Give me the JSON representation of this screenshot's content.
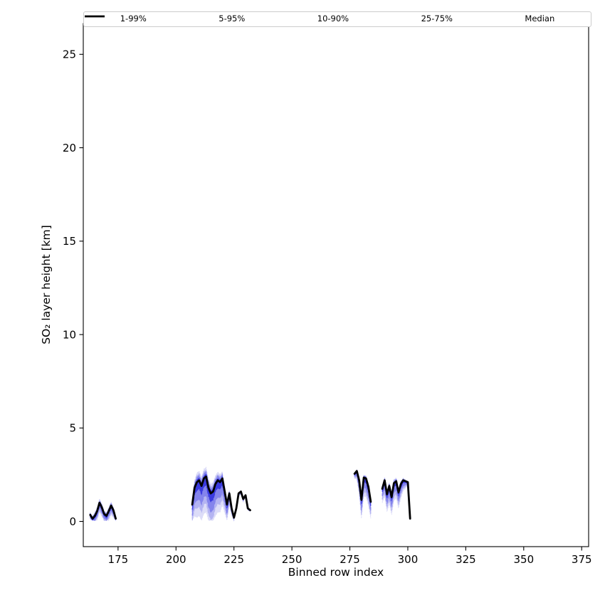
{
  "figure": {
    "background": "#ffffff"
  },
  "chart_data": {
    "type": "line",
    "title": "",
    "xlabel": "Binned row index",
    "ylabel": "SO₂ layer height [km]",
    "xlim": [
      160,
      378
    ],
    "ylim": [
      -1.35,
      26.65
    ],
    "xticks": [
      175,
      200,
      225,
      250,
      275,
      300,
      325,
      350,
      375
    ],
    "yticks": [
      0,
      5,
      10,
      15,
      20,
      25
    ],
    "grid": false,
    "legend_position": "top",
    "legend": [
      {
        "label": "1-99%",
        "color": "#dcdcf8",
        "dash": "1,2.8",
        "width": 1.2
      },
      {
        "label": "5-95%",
        "color": "#b4b4f2",
        "dash": "4,2.5",
        "width": 1.2
      },
      {
        "label": "10-90%",
        "color": "#8484ec",
        "dash": "5,3",
        "width": 1.2
      },
      {
        "label": "25-75%",
        "color": "#3a3ae0",
        "dash": "6,2.5,1.5,2.5",
        "width": 1.4
      },
      {
        "label": "Median",
        "color": "#000000",
        "dash": "",
        "width": 2.8
      }
    ],
    "bands": [
      {
        "label": "1-99%",
        "fill": "#dcdcf8",
        "dash": "1,2.8"
      },
      {
        "label": "5-95%",
        "fill": "#b4b4f2",
        "dash": "4,2.5"
      },
      {
        "label": "10-90%",
        "fill": "#8484ec",
        "dash": "5,3"
      },
      {
        "label": "25-75%",
        "fill": "#3a3ae0",
        "dash": "6,2.5,1.5,2.5"
      }
    ],
    "median_style": {
      "color": "#000000",
      "width": 2.8
    },
    "segments": [
      {
        "x": [
          163,
          164,
          165,
          166,
          167,
          168,
          169,
          170,
          171,
          172,
          173,
          174
        ],
        "median": [
          0.35,
          0.15,
          0.3,
          0.55,
          1.0,
          0.75,
          0.4,
          0.3,
          0.55,
          0.85,
          0.6,
          0.15
        ],
        "spread": [
          0.5,
          0.7,
          1,
          1,
          1,
          1,
          0.9,
          0.9,
          1,
          1,
          0.8,
          0.5
        ],
        "offsets": [
          [
            0.5,
            0.2
          ],
          [
            0.38,
            0.15
          ],
          [
            0.27,
            0.1
          ],
          [
            0.13,
            0.05
          ]
        ]
      },
      {
        "x": [
          207,
          208,
          209,
          210,
          211,
          212,
          213,
          214,
          215,
          216,
          217,
          218,
          219,
          220,
          221,
          222,
          223,
          224,
          225,
          226,
          227,
          228,
          229,
          230,
          231,
          232
        ],
        "median": [
          0.9,
          1.8,
          2.1,
          2.2,
          1.9,
          2.3,
          2.4,
          1.8,
          1.5,
          1.6,
          2.0,
          2.2,
          2.1,
          2.3,
          1.6,
          0.9,
          1.5,
          0.7,
          0.2,
          0.7,
          1.5,
          1.6,
          1.2,
          1.4,
          0.7,
          0.6
        ],
        "spread": [
          0.6,
          0.8,
          1,
          1,
          1,
          1,
          1,
          1,
          1,
          1,
          0.9,
          0.9,
          0.85,
          0.75,
          0.6,
          0.5,
          0.35,
          0.2,
          0.1,
          0.08,
          0.08,
          0.08,
          0.08,
          0.06,
          0.05,
          0.05
        ],
        "offsets": [
          [
            1.9,
            0.5
          ],
          [
            1.4,
            0.35
          ],
          [
            1.0,
            0.25
          ],
          [
            0.45,
            0.12
          ]
        ]
      },
      {
        "x": [
          277,
          278,
          279,
          280,
          281,
          282,
          283,
          284
        ],
        "median": [
          2.55,
          2.7,
          2.2,
          1.15,
          2.35,
          2.3,
          1.85,
          1.05
        ],
        "spread": [
          0.25,
          0.45,
          0.75,
          1,
          1,
          1,
          1,
          0.9
        ],
        "offsets": [
          [
            1.0,
            0.15
          ],
          [
            0.78,
            0.1
          ],
          [
            0.55,
            0.08
          ],
          [
            0.25,
            0.05
          ]
        ]
      },
      {
        "x": [
          289,
          290,
          291,
          292,
          293,
          294,
          295,
          296,
          297,
          298,
          299,
          300,
          301
        ],
        "median": [
          1.75,
          2.2,
          1.45,
          1.9,
          1.3,
          2.05,
          2.15,
          1.55,
          2.0,
          2.2,
          2.15,
          2.1,
          0.15
        ],
        "spread": [
          0.8,
          0.9,
          1,
          1,
          1,
          1,
          0.95,
          0.9,
          0.8,
          0.6,
          0.4,
          0.2,
          0.1
        ],
        "offsets": [
          [
            0.95,
            0.2
          ],
          [
            0.72,
            0.15
          ],
          [
            0.5,
            0.1
          ],
          [
            0.22,
            0.05
          ]
        ]
      }
    ]
  }
}
